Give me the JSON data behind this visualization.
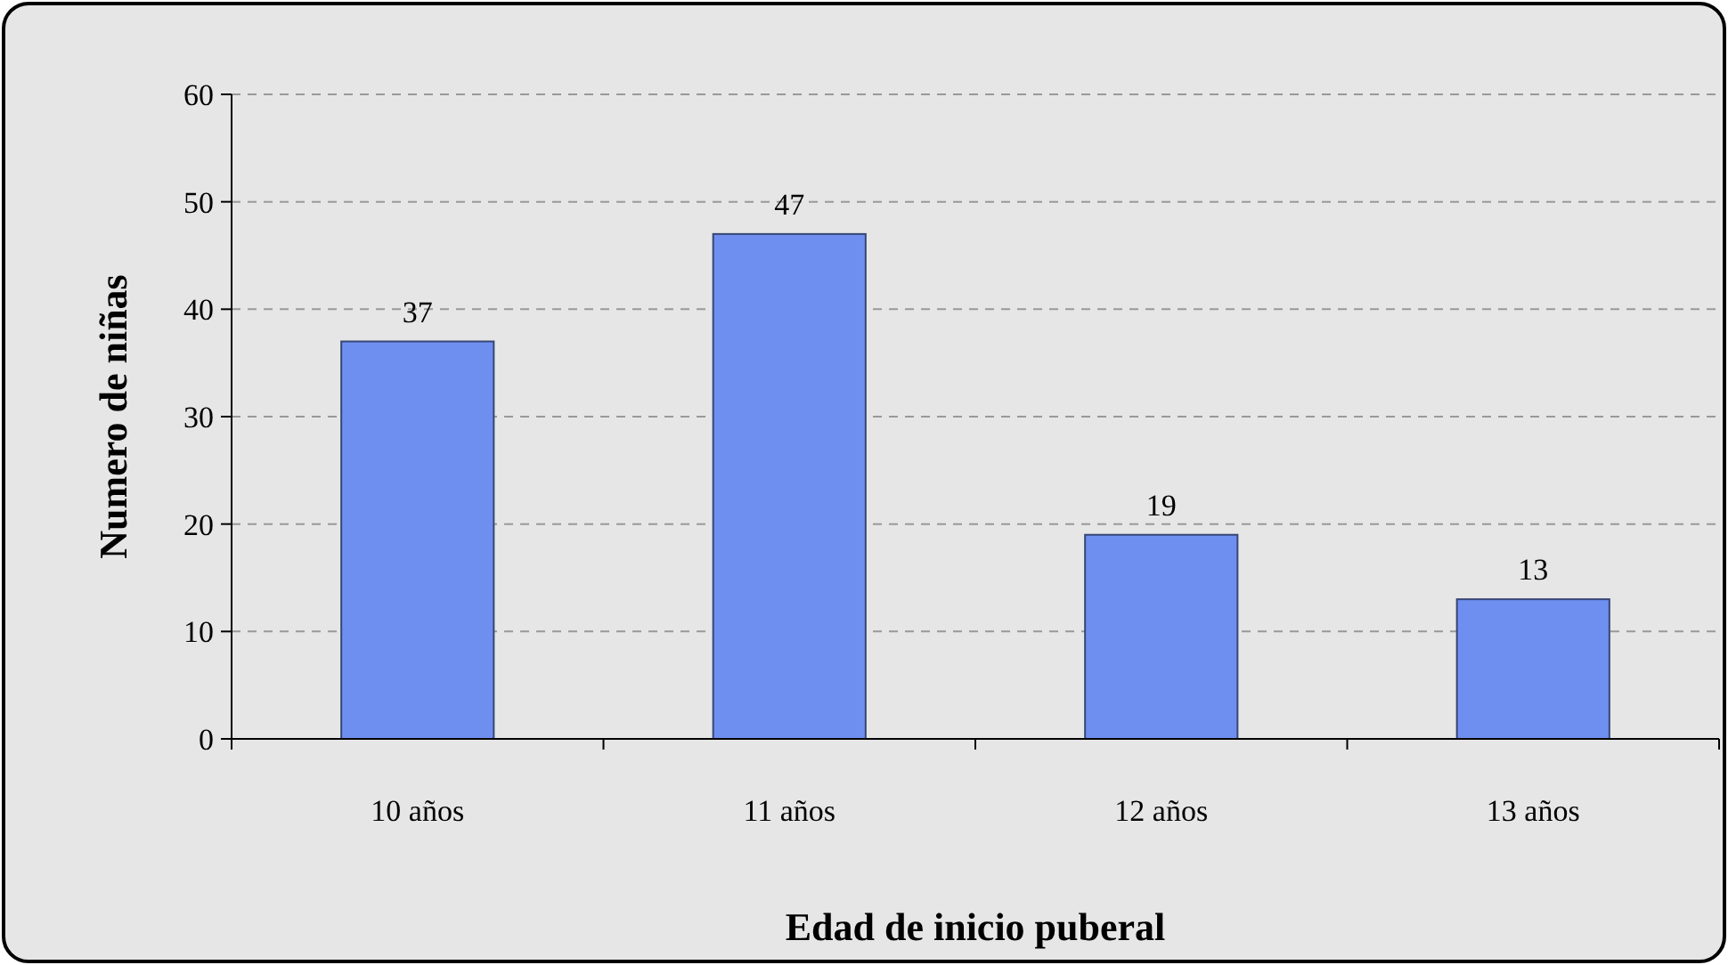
{
  "chart_data": {
    "type": "bar",
    "xlabel": "Edad de inicio puberal",
    "ylabel": "Numero de niñas",
    "categories": [
      "10 años",
      "11 años",
      "12 años",
      "13 años"
    ],
    "values": [
      37,
      47,
      19,
      13
    ],
    "color": "#6f8ff0",
    "ylim": [
      0,
      60
    ],
    "yticks": [
      0,
      10,
      20,
      30,
      40,
      50,
      60
    ],
    "grid": "y",
    "data_labels": true
  }
}
